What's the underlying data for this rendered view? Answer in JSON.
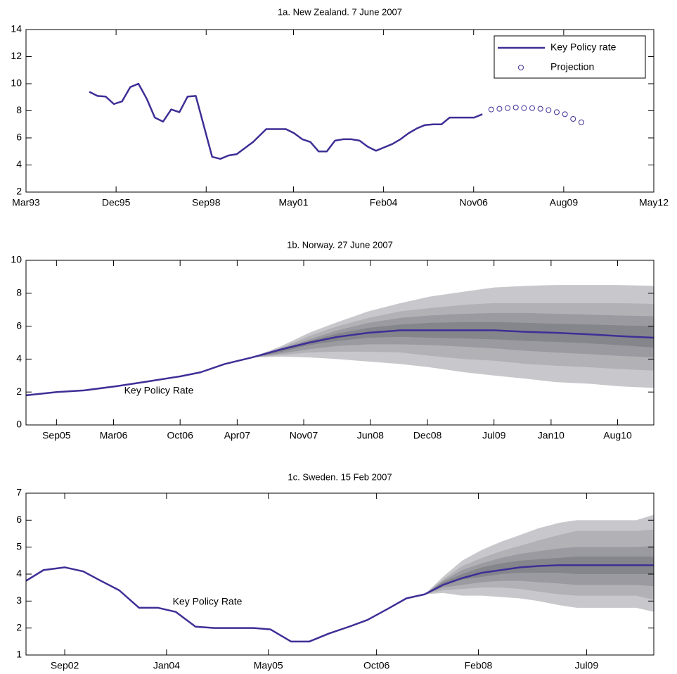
{
  "chart_data": [
    {
      "type": "line",
      "title": "1a. New Zealand. 7 June 2007",
      "xlim": [
        1993.167,
        2012.333
      ],
      "xticks": [
        {
          "value": 1993.167,
          "label": "Mar93"
        },
        {
          "value": 1995.917,
          "label": "Dec95"
        },
        {
          "value": 1998.667,
          "label": "Sep98"
        },
        {
          "value": 2001.333,
          "label": "May01"
        },
        {
          "value": 2004.083,
          "label": "Feb04"
        },
        {
          "value": 2006.833,
          "label": "Nov06"
        },
        {
          "value": 2009.583,
          "label": "Aug09"
        },
        {
          "value": 2012.333,
          "label": "May12"
        }
      ],
      "ylim": [
        2,
        14
      ],
      "yticks": [
        2,
        4,
        6,
        8,
        10,
        12,
        14
      ],
      "legend": "upper right",
      "series": [
        {
          "name": "Key Policy rate",
          "color": "#3d2f96",
          "marker": "line",
          "x": [
            1995.1,
            1995.35,
            1995.6,
            1995.85,
            1996.1,
            1996.35,
            1996.6,
            1996.85,
            1997.1,
            1997.35,
            1997.6,
            1997.85,
            1998.1,
            1998.35,
            1998.85,
            1999.1,
            1999.35,
            1999.6,
            2000.1,
            2000.5,
            2000.85,
            2001.1,
            2001.35,
            2001.6,
            2001.85,
            2002.1,
            2002.35,
            2002.6,
            2002.85,
            2003.1,
            2003.35,
            2003.6,
            2003.85,
            2004.1,
            2004.35,
            2004.6,
            2004.85,
            2005.1,
            2005.35,
            2005.6,
            2005.85,
            2006.1,
            2006.35,
            2006.6,
            2006.85,
            2007.1
          ],
          "values": [
            9.4,
            9.1,
            9.05,
            8.5,
            8.7,
            9.75,
            10.0,
            8.9,
            7.5,
            7.2,
            8.1,
            7.9,
            9.05,
            9.1,
            4.6,
            4.45,
            4.7,
            4.8,
            5.7,
            6.65,
            6.65,
            6.65,
            6.35,
            5.9,
            5.7,
            5.0,
            5.0,
            5.8,
            5.9,
            5.9,
            5.8,
            5.35,
            5.05,
            5.3,
            5.55,
            5.9,
            6.35,
            6.7,
            6.95,
            7.0,
            7.0,
            7.5,
            7.5,
            7.5,
            7.5,
            7.75
          ]
        },
        {
          "name": "Projection",
          "color": "#3d2f96",
          "marker": "circle",
          "x": [
            2007.37,
            2007.62,
            2007.87,
            2008.12,
            2008.37,
            2008.62,
            2008.87,
            2009.12,
            2009.37,
            2009.62,
            2009.87,
            2010.12
          ],
          "values": [
            8.1,
            8.15,
            8.2,
            8.25,
            8.2,
            8.2,
            8.15,
            8.05,
            7.9,
            7.75,
            7.4,
            7.15
          ]
        }
      ]
    },
    {
      "type": "line",
      "title": "1b. Norway. 27 June 2007",
      "annotation": "Key Policy Rate",
      "xlim": [
        2005.4,
        2010.9
      ],
      "xticks": [
        {
          "value": 2005.667,
          "label": "Sep05"
        },
        {
          "value": 2006.167,
          "label": "Mar06"
        },
        {
          "value": 2006.75,
          "label": "Oct06"
        },
        {
          "value": 2007.25,
          "label": "Apr07"
        },
        {
          "value": 2007.833,
          "label": "Nov07"
        },
        {
          "value": 2008.417,
          "label": "Jun08"
        },
        {
          "value": 2008.917,
          "label": "Dec08"
        },
        {
          "value": 2009.5,
          "label": "Jul09"
        },
        {
          "value": 2010.0,
          "label": "Jan10"
        },
        {
          "value": 2010.583,
          "label": "Aug10"
        }
      ],
      "ylim": [
        0,
        10
      ],
      "yticks": [
        0,
        2,
        4,
        6,
        8,
        10
      ],
      "fan": {
        "x": [
          2007.38,
          2007.64,
          2007.88,
          2008.13,
          2008.4,
          2008.68,
          2008.94,
          2009.24,
          2009.5,
          2009.79,
          2010.04,
          2010.34,
          2010.59,
          2010.9
        ],
        "bands": [
          {
            "color": "#c8c8cc",
            "upper": [
              4.1,
              4.8,
              5.6,
              6.25,
              6.9,
              7.4,
              7.8,
              8.1,
              8.35,
              8.45,
              8.5,
              8.5,
              8.5,
              8.45
            ],
            "lower": [
              4.1,
              4.15,
              4.1,
              4.0,
              3.85,
              3.7,
              3.5,
              3.2,
              3.0,
              2.8,
              2.6,
              2.5,
              2.35,
              2.25
            ]
          },
          {
            "color": "#b1b1b6",
            "upper": [
              4.1,
              4.7,
              5.4,
              6.0,
              6.5,
              6.9,
              7.1,
              7.3,
              7.4,
              7.4,
              7.4,
              7.4,
              7.4,
              7.35
            ],
            "lower": [
              4.1,
              4.25,
              4.4,
              4.45,
              4.45,
              4.4,
              4.2,
              4.0,
              3.9,
              3.7,
              3.6,
              3.5,
              3.4,
              3.3
            ]
          },
          {
            "color": "#9a9aa0",
            "upper": [
              4.1,
              4.65,
              5.2,
              5.75,
              6.2,
              6.5,
              6.65,
              6.75,
              6.8,
              6.8,
              6.75,
              6.7,
              6.65,
              6.6
            ],
            "lower": [
              4.1,
              4.35,
              4.6,
              4.8,
              4.9,
              4.9,
              4.85,
              4.75,
              4.65,
              4.5,
              4.4,
              4.3,
              4.2,
              4.1
            ]
          },
          {
            "color": "#85858c",
            "upper": [
              4.1,
              4.6,
              5.1,
              5.55,
              5.9,
              6.1,
              6.2,
              6.25,
              6.25,
              6.2,
              6.15,
              6.1,
              6.05,
              6.0
            ],
            "lower": [
              4.1,
              4.45,
              4.85,
              5.1,
              5.3,
              5.35,
              5.3,
              5.25,
              5.2,
              5.1,
              5.05,
              4.95,
              4.85,
              4.7
            ]
          }
        ]
      },
      "series": [
        {
          "color": "#3d2f96",
          "marker": "line",
          "x": [
            2005.4,
            2005.67,
            2005.91,
            2006.19,
            2006.43,
            2006.75,
            2006.93,
            2007.14,
            2007.38,
            2007.64,
            2007.88,
            2008.13,
            2008.4,
            2008.68,
            2008.94,
            2009.24,
            2009.5,
            2009.79,
            2010.04,
            2010.34,
            2010.59,
            2010.9
          ],
          "values": [
            1.8,
            2.0,
            2.1,
            2.35,
            2.6,
            2.95,
            3.2,
            3.7,
            4.1,
            4.6,
            5.0,
            5.35,
            5.6,
            5.75,
            5.75,
            5.75,
            5.75,
            5.65,
            5.6,
            5.5,
            5.4,
            5.3
          ]
        }
      ]
    },
    {
      "type": "line",
      "title": "1c. Sweden. 15 Feb 2007",
      "annotation": "Key Policy Rate",
      "xlim": [
        2002.16,
        2010.38
      ],
      "xticks": [
        {
          "value": 2002.667,
          "label": "Sep02"
        },
        {
          "value": 2004.0,
          "label": "Jan04"
        },
        {
          "value": 2005.333,
          "label": "May05"
        },
        {
          "value": 2006.75,
          "label": "Oct06"
        },
        {
          "value": 2008.083,
          "label": "Feb08"
        },
        {
          "value": 2009.5,
          "label": "Jul09"
        }
      ],
      "ylim": [
        1,
        7
      ],
      "yticks": [
        1,
        2,
        3,
        4,
        5,
        6,
        7
      ],
      "fan": {
        "x": [
          2007.38,
          2007.62,
          2007.87,
          2008.13,
          2008.38,
          2008.63,
          2008.87,
          2009.14,
          2009.37,
          2009.64,
          2009.9,
          2010.15,
          2010.38
        ],
        "bands": [
          {
            "color": "#c8c8cc",
            "upper": [
              3.25,
              3.9,
              4.5,
              4.9,
              5.2,
              5.45,
              5.7,
              5.9,
              6.0,
              6.0,
              6.0,
              6.0,
              6.2
            ],
            "lower": [
              3.25,
              3.3,
              3.2,
              3.2,
              3.15,
              3.1,
              3.0,
              2.85,
              2.75,
              2.75,
              2.75,
              2.75,
              2.6
            ]
          },
          {
            "color": "#b1b1b6",
            "upper": [
              3.25,
              3.8,
              4.3,
              4.6,
              4.85,
              5.05,
              5.25,
              5.45,
              5.6,
              5.6,
              5.6,
              5.6,
              5.65
            ],
            "lower": [
              3.25,
              3.4,
              3.45,
              3.5,
              3.5,
              3.45,
              3.35,
              3.25,
              3.2,
              3.2,
              3.2,
              3.2,
              3.05
            ]
          },
          {
            "color": "#9a9aa0",
            "upper": [
              3.25,
              3.75,
              4.15,
              4.4,
              4.6,
              4.75,
              4.85,
              4.95,
              5.0,
              5.0,
              5.0,
              5.0,
              5.05
            ],
            "lower": [
              3.25,
              3.5,
              3.6,
              3.7,
              3.75,
              3.75,
              3.7,
              3.65,
              3.6,
              3.6,
              3.6,
              3.6,
              3.55
            ]
          },
          {
            "color": "#85858c",
            "upper": [
              3.25,
              3.7,
              4.0,
              4.25,
              4.4,
              4.5,
              4.55,
              4.6,
              4.65,
              4.65,
              4.65,
              4.65,
              4.65
            ],
            "lower": [
              3.25,
              3.6,
              3.8,
              3.9,
              4.0,
              4.05,
              4.05,
              4.05,
              4.0,
              4.0,
              4.0,
              4.0,
              4.0
            ]
          }
        ]
      },
      "series": [
        {
          "color": "#3d2f96",
          "marker": "line",
          "x": [
            2002.16,
            2002.39,
            2002.67,
            2002.91,
            2003.14,
            2003.38,
            2003.64,
            2003.89,
            2004.12,
            2004.38,
            2004.63,
            2004.89,
            2005.14,
            2005.36,
            2005.63,
            2005.87,
            2006.13,
            2006.39,
            2006.63,
            2006.89,
            2007.14,
            2007.38,
            2007.62,
            2007.87,
            2008.13,
            2008.38,
            2008.63,
            2008.87,
            2009.14,
            2009.37,
            2009.64,
            2009.9,
            2010.15,
            2010.38
          ],
          "values": [
            3.75,
            4.15,
            4.25,
            4.1,
            3.75,
            3.4,
            2.75,
            2.75,
            2.6,
            2.05,
            2.0,
            2.0,
            2.0,
            1.95,
            1.5,
            1.5,
            1.8,
            2.05,
            2.3,
            2.7,
            3.1,
            3.25,
            3.6,
            3.85,
            4.05,
            4.15,
            4.25,
            4.3,
            4.33,
            4.33,
            4.33,
            4.33,
            4.33,
            4.33
          ]
        }
      ]
    }
  ]
}
